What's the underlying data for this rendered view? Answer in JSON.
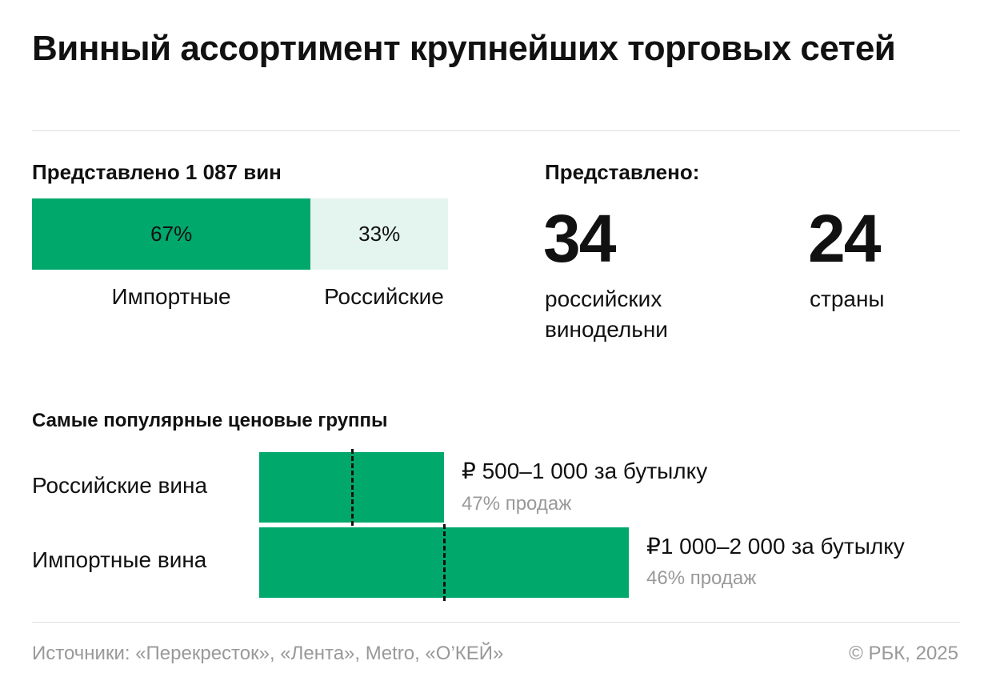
{
  "title": "Винный ассортимент крупнейших торговых сетей",
  "colors": {
    "green": "#00a86b",
    "light": "#e3f5ee",
    "text": "#111111",
    "muted": "#999999"
  },
  "share": {
    "heading": "Представлено 1 087 вин",
    "segments": [
      {
        "label": "Импортные",
        "value": 67,
        "value_label": "67%"
      },
      {
        "label": "Российские",
        "value": 33,
        "value_label": "33%"
      }
    ]
  },
  "stats": {
    "heading": "Представлено:",
    "items": [
      {
        "number": "34",
        "caption_line1": "российских",
        "caption_line2": "винодельни"
      },
      {
        "number": "24",
        "caption_line1": "страны",
        "caption_line2": ""
      }
    ]
  },
  "chart_data": {
    "type": "bar",
    "title": "Самые популярные ценовые группы",
    "categories": [
      "Российские вина",
      "Импортные вина"
    ],
    "series": [
      {
        "name": "price_range_rub",
        "values": [
          [
            500,
            1000
          ],
          [
            1000,
            2000
          ]
        ]
      }
    ],
    "range_labels": [
      "₽ 500–1 000 за бутылку",
      "₽1 000–2 000 за бутылку"
    ],
    "sales_labels": [
      "47% продаж",
      "46% продаж"
    ],
    "sales_share": [
      47,
      46
    ],
    "xlim": [
      0,
      2000
    ]
  },
  "footer": {
    "sources": "Источники: «Перекресток», «Лента», Metro, «О’КЕЙ»",
    "copyright": "© РБК, 2025"
  }
}
